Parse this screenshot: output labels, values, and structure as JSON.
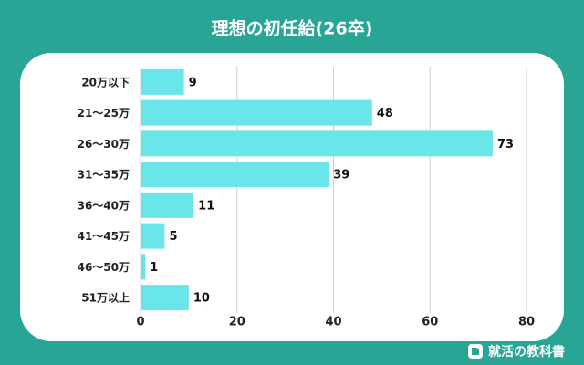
{
  "chart_data": {
    "type": "bar",
    "orientation": "horizontal",
    "title": "理想の初任給(26卒)",
    "categories": [
      "20万以下",
      "21〜25万",
      "26〜30万",
      "31〜35万",
      "36〜40万",
      "41〜45万",
      "46〜50万",
      "51万以上"
    ],
    "values": [
      9,
      48,
      73,
      39,
      11,
      5,
      1,
      10
    ],
    "color": "#6ae5e9",
    "xlim": [
      0,
      80
    ],
    "xticks": [
      0,
      20,
      40,
      60,
      80
    ],
    "grid": true,
    "source": "就活の教科書"
  }
}
